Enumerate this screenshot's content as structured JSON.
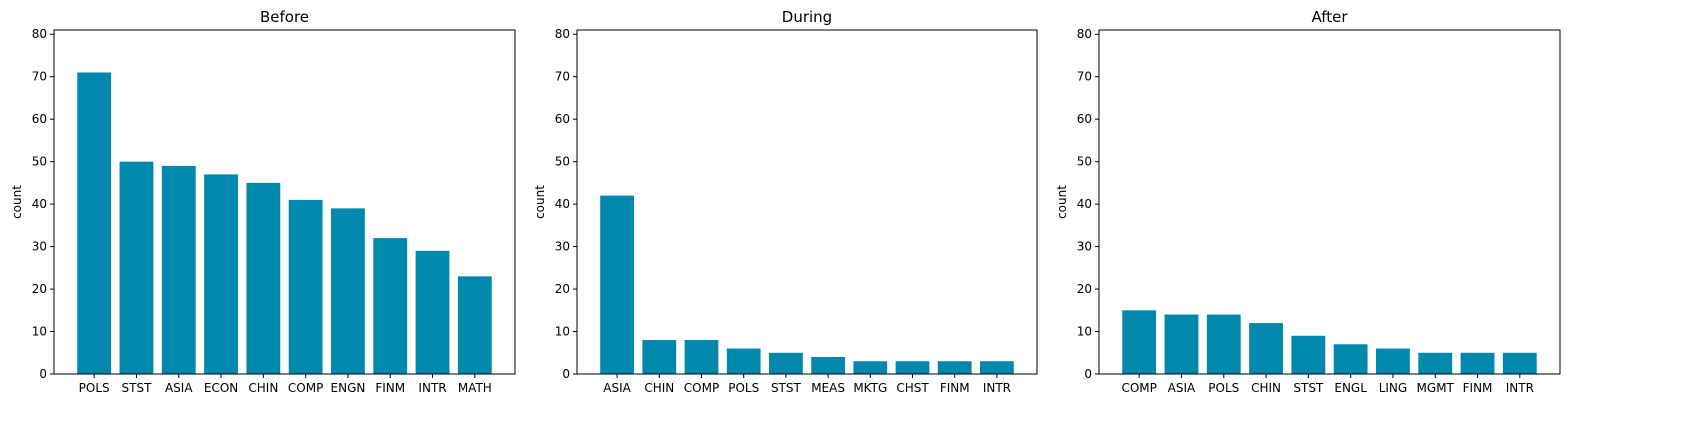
{
  "chart_data": [
    {
      "type": "bar",
      "title": "Before",
      "xlabel": "",
      "ylabel": "count",
      "ylim": [
        0,
        81
      ],
      "yticks": [
        0,
        10,
        20,
        30,
        40,
        50,
        60,
        70,
        80
      ],
      "categories": [
        "POLS",
        "STST",
        "ASIA",
        "ECON",
        "CHIN",
        "COMP",
        "ENGN",
        "FINM",
        "INTR",
        "MATH"
      ],
      "values": [
        71,
        50,
        49,
        47,
        45,
        41,
        39,
        32,
        29,
        23
      ],
      "color": "#0088ad",
      "grid": false
    },
    {
      "type": "bar",
      "title": "During",
      "xlabel": "",
      "ylabel": "count",
      "ylim": [
        0,
        81
      ],
      "yticks": [
        0,
        10,
        20,
        30,
        40,
        50,
        60,
        70,
        80
      ],
      "categories": [
        "ASIA",
        "CHIN",
        "COMP",
        "POLS",
        "STST",
        "MEAS",
        "MKTG",
        "CHST",
        "FINM",
        "INTR"
      ],
      "values": [
        42,
        8,
        8,
        6,
        5,
        4,
        3,
        3,
        3,
        3
      ],
      "color": "#0088ad",
      "grid": false
    },
    {
      "type": "bar",
      "title": "After",
      "xlabel": "",
      "ylabel": "count",
      "ylim": [
        0,
        81
      ],
      "yticks": [
        0,
        10,
        20,
        30,
        40,
        50,
        60,
        70,
        80
      ],
      "categories": [
        "COMP",
        "ASIA",
        "POLS",
        "CHIN",
        "STST",
        "ENGL",
        "LING",
        "MGMT",
        "FINM",
        "INTR"
      ],
      "values": [
        15,
        14,
        14,
        12,
        9,
        7,
        6,
        5,
        5,
        5
      ],
      "color": "#0088ad",
      "grid": false
    }
  ]
}
